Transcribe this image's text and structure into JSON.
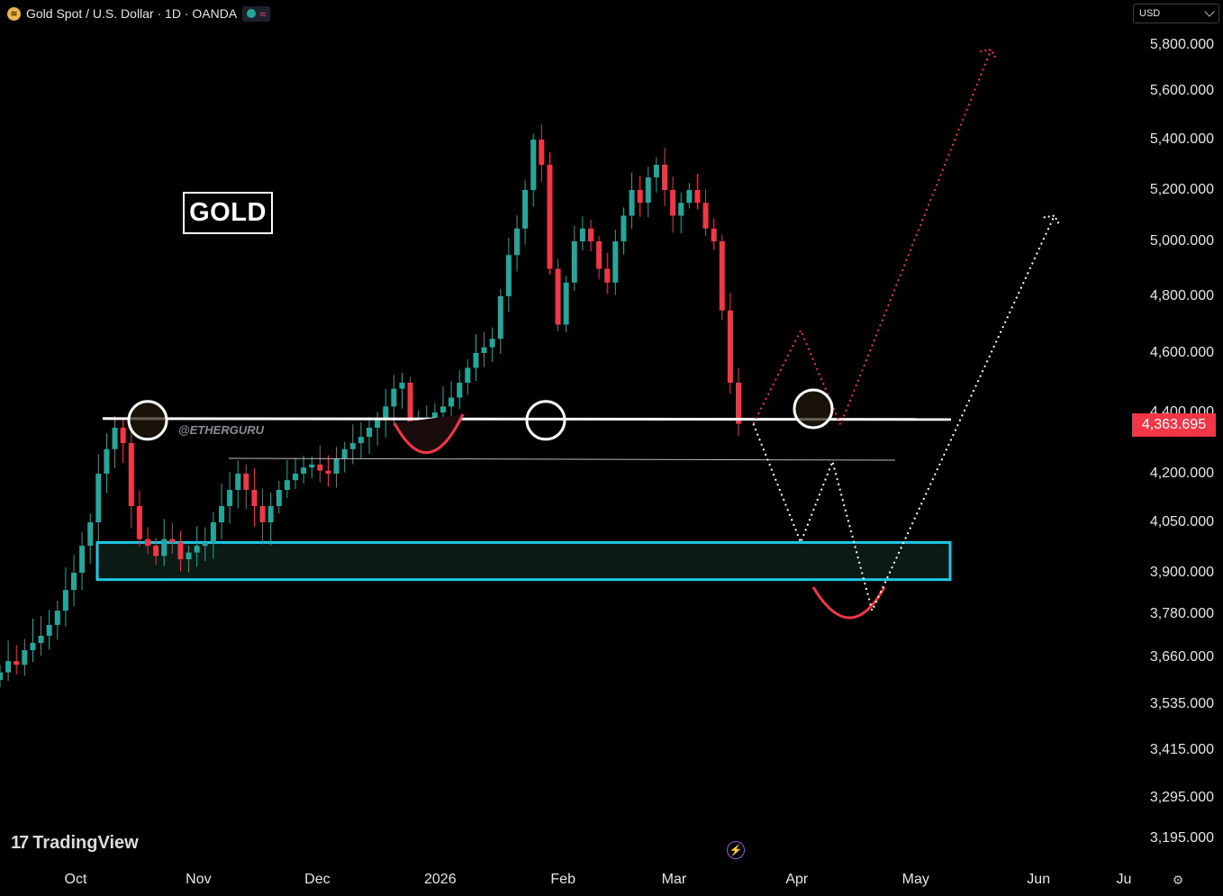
{
  "header": {
    "title": "Gold Spot / U.S. Dollar · 1D · OANDA",
    "coin_icon": "gold-coin-icon",
    "status_icon": "market-open-dot-icon",
    "wave_symbol": "≈"
  },
  "currency_selector": {
    "value": "USD"
  },
  "annotations": {
    "gold_label": "GOLD",
    "watermark": "@ETHERGURU"
  },
  "branding": {
    "logo_mark": "17",
    "logo_text": "TradingView"
  },
  "current_price": "4,363.695",
  "colors": {
    "up": "#26a69a",
    "down": "#f23645",
    "zone_border": "#1ec8e6",
    "projection_red": "#f23645",
    "projection_white": "#ffffff"
  },
  "chart_data": {
    "type": "candlestick",
    "title": "Gold Spot / U.S. Dollar · 1D · OANDA",
    "price_ticks": [
      "5,800.000",
      "5,600.000",
      "5,400.000",
      "5,200.000",
      "5,000.000",
      "4,800.000",
      "4,600.000",
      "4,400.000",
      "4,200.000",
      "4,050.000",
      "3,900.000",
      "3,780.000",
      "3,660.000",
      "3,535.000",
      "3,415.000",
      "3,295.000",
      "3,195.000"
    ],
    "time_ticks": [
      "Oct",
      "Nov",
      "Dec",
      "2026",
      "Feb",
      "Mar",
      "Apr",
      "May",
      "Jun",
      "Ju"
    ],
    "resistance_level": 4380,
    "secondary_level": 4250,
    "support_zone": [
      3880,
      3990
    ],
    "projection_red_path": [
      {
        "date": "2026-03-21",
        "price": 4363
      },
      {
        "date": "2026-04-02",
        "price": 4680
      },
      {
        "date": "2026-04-12",
        "price": 4360
      },
      {
        "date": "2026-05-20",
        "price": 5780
      }
    ],
    "projection_white_path": [
      {
        "date": "2026-03-21",
        "price": 4363
      },
      {
        "date": "2026-04-02",
        "price": 3990
      },
      {
        "date": "2026-04-10",
        "price": 4240
      },
      {
        "date": "2026-04-20",
        "price": 3790
      },
      {
        "date": "2026-06-05",
        "price": 5100
      }
    ],
    "key_points": [
      {
        "date": "2025-10-16",
        "price": 4380
      },
      {
        "date": "2026-01-30",
        "price": 4380
      },
      {
        "date": "2026-04-10",
        "price": 4400
      }
    ],
    "approx_daily_closes": [
      3620,
      3650,
      3640,
      3680,
      3700,
      3720,
      3750,
      3790,
      3850,
      3900,
      3980,
      4050,
      4200,
      4280,
      4350,
      4300,
      4100,
      4000,
      3980,
      3950,
      4000,
      3990,
      3940,
      3960,
      3980,
      3990,
      4050,
      4100,
      4150,
      4200,
      4150,
      4100,
      4050,
      4100,
      4150,
      4180,
      4200,
      4220,
      4230,
      4210,
      4200,
      4250,
      4280,
      4300,
      4320,
      4350,
      4380,
      4420,
      4480,
      4500,
      4320,
      4350,
      4380,
      4400,
      4420,
      4450,
      4500,
      4550,
      4600,
      4620,
      4650,
      4800,
      4950,
      5050,
      5200,
      5400,
      5300,
      4900,
      4700,
      4850,
      5000,
      5050,
      5000,
      4900,
      4850,
      5000,
      5100,
      5200,
      5150,
      5250,
      5300,
      5200,
      5100,
      5150,
      5200,
      5150,
      5050,
      5000,
      4750,
      4500,
      4363
    ]
  }
}
